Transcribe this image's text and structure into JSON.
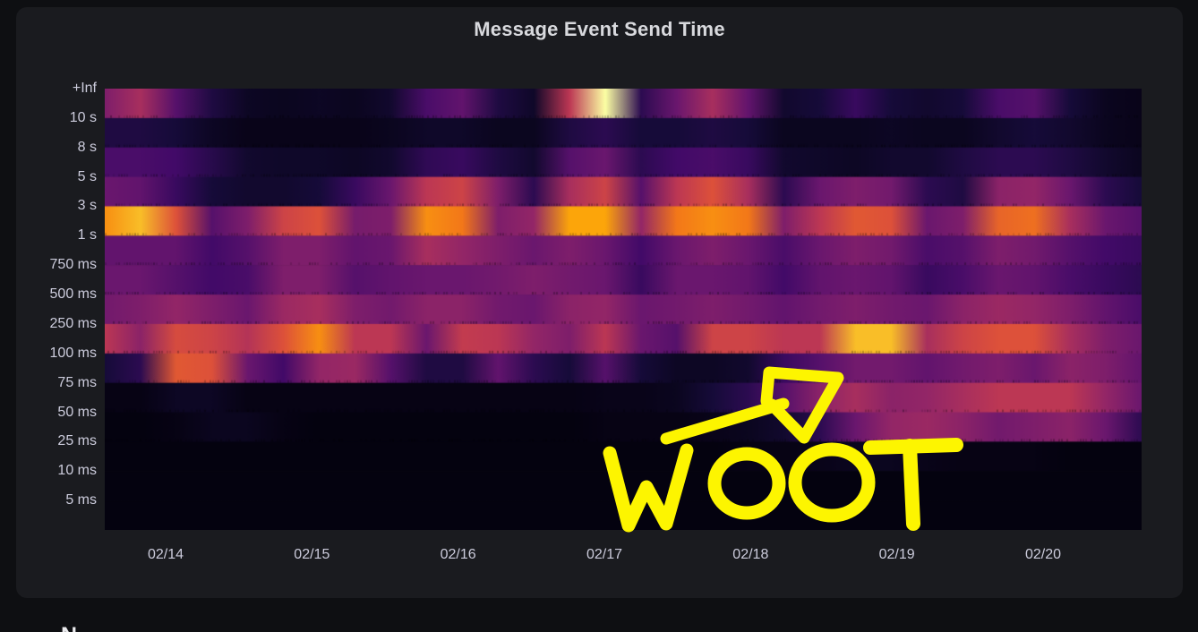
{
  "panel": {
    "title": "Message Event Send Time",
    "background": "#1a1b1f",
    "page_background": "#0e0f12",
    "text_color": "#ccccdc",
    "title_color": "#d8d9dd"
  },
  "annotation": {
    "text": "WOOT",
    "kind": "hand-drawn-marker-with-arrow",
    "color": "#fdf500"
  },
  "footer": {
    "clipped_text": "N"
  },
  "chart_data": {
    "type": "heatmap",
    "title": "Message Event Send Time",
    "xlabel": "",
    "ylabel": "",
    "legend": "none",
    "grid": false,
    "colormap": "inferno",
    "colormap_stops": [
      [
        0.0,
        0,
        0,
        4
      ],
      [
        0.1,
        22,
        11,
        57
      ],
      [
        0.2,
        66,
        10,
        104
      ],
      [
        0.3,
        106,
        23,
        110
      ],
      [
        0.4,
        147,
        38,
        103
      ],
      [
        0.5,
        188,
        55,
        84
      ],
      [
        0.6,
        221,
        81,
        58
      ],
      [
        0.7,
        243,
        120,
        25
      ],
      [
        0.8,
        252,
        165,
        10
      ],
      [
        0.9,
        246,
        215,
        70
      ],
      [
        1.0,
        252,
        255,
        164
      ]
    ],
    "x_tick_labels": [
      "02/14",
      "02/15",
      "02/16",
      "02/17",
      "02/18",
      "02/19",
      "02/20"
    ],
    "y_bucket_labels": [
      "+Inf",
      "10 s",
      "8 s",
      "5 s",
      "3 s",
      "1 s",
      "750 ms",
      "500 ms",
      "250 ms",
      "100 ms",
      "75 ms",
      "50 ms",
      "25 ms",
      "10 ms",
      "5 ms"
    ],
    "intensity_note": "relative event density 0..1 sampled at 30 evenly spaced time columns spanning ~02/13.6 to ~02/20.7",
    "rows": [
      {
        "bucket": "+Inf",
        "values": [
          0.35,
          0.45,
          0.25,
          0.12,
          0.06,
          0.05,
          0.06,
          0.05,
          0.08,
          0.22,
          0.28,
          0.12,
          0.07,
          0.5,
          1.0,
          0.15,
          0.3,
          0.45,
          0.28,
          0.08,
          0.1,
          0.18,
          0.1,
          0.08,
          0.1,
          0.22,
          0.25,
          0.1,
          0.05,
          0.04
        ]
      },
      {
        "bucket": "10 s",
        "values": [
          0.12,
          0.12,
          0.1,
          0.06,
          0.04,
          0.04,
          0.04,
          0.04,
          0.05,
          0.07,
          0.07,
          0.05,
          0.05,
          0.12,
          0.15,
          0.1,
          0.1,
          0.12,
          0.1,
          0.05,
          0.05,
          0.05,
          0.06,
          0.05,
          0.05,
          0.08,
          0.1,
          0.08,
          0.05,
          0.04
        ]
      },
      {
        "bucket": "8 s",
        "values": [
          0.22,
          0.22,
          0.2,
          0.14,
          0.08,
          0.07,
          0.07,
          0.06,
          0.08,
          0.16,
          0.18,
          0.12,
          0.08,
          0.25,
          0.3,
          0.15,
          0.2,
          0.22,
          0.18,
          0.08,
          0.07,
          0.06,
          0.08,
          0.08,
          0.12,
          0.15,
          0.15,
          0.12,
          0.08,
          0.05
        ]
      },
      {
        "bucket": "5 s",
        "values": [
          0.3,
          0.28,
          0.18,
          0.1,
          0.08,
          0.08,
          0.1,
          0.18,
          0.3,
          0.5,
          0.55,
          0.35,
          0.15,
          0.45,
          0.55,
          0.25,
          0.5,
          0.6,
          0.45,
          0.15,
          0.3,
          0.35,
          0.32,
          0.15,
          0.12,
          0.38,
          0.4,
          0.3,
          0.15,
          0.1
        ]
      },
      {
        "bucket": "3 s",
        "values": [
          0.75,
          0.85,
          0.6,
          0.25,
          0.35,
          0.55,
          0.6,
          0.33,
          0.35,
          0.75,
          0.7,
          0.35,
          0.4,
          0.8,
          0.8,
          0.4,
          0.7,
          0.75,
          0.7,
          0.35,
          0.5,
          0.62,
          0.6,
          0.3,
          0.35,
          0.65,
          0.68,
          0.45,
          0.3,
          0.25
        ]
      },
      {
        "bucket": "1 s",
        "values": [
          0.28,
          0.28,
          0.28,
          0.2,
          0.25,
          0.35,
          0.35,
          0.28,
          0.3,
          0.45,
          0.4,
          0.35,
          0.3,
          0.35,
          0.3,
          0.2,
          0.3,
          0.35,
          0.3,
          0.22,
          0.3,
          0.35,
          0.32,
          0.22,
          0.25,
          0.35,
          0.32,
          0.25,
          0.2,
          0.18
        ]
      },
      {
        "bucket": "750 ms",
        "values": [
          0.3,
          0.3,
          0.25,
          0.2,
          0.22,
          0.35,
          0.35,
          0.25,
          0.28,
          0.3,
          0.3,
          0.32,
          0.35,
          0.32,
          0.3,
          0.18,
          0.3,
          0.3,
          0.28,
          0.2,
          0.28,
          0.3,
          0.28,
          0.18,
          0.22,
          0.3,
          0.28,
          0.22,
          0.18,
          0.15
        ]
      },
      {
        "bucket": "500 ms",
        "values": [
          0.32,
          0.35,
          0.4,
          0.35,
          0.3,
          0.42,
          0.45,
          0.35,
          0.32,
          0.38,
          0.38,
          0.32,
          0.3,
          0.38,
          0.4,
          0.3,
          0.32,
          0.35,
          0.32,
          0.28,
          0.32,
          0.35,
          0.32,
          0.3,
          0.38,
          0.42,
          0.4,
          0.35,
          0.28,
          0.22
        ]
      },
      {
        "bucket": "250 ms",
        "values": [
          0.5,
          0.38,
          0.58,
          0.55,
          0.48,
          0.6,
          0.75,
          0.5,
          0.5,
          0.3,
          0.52,
          0.5,
          0.4,
          0.35,
          0.5,
          0.3,
          0.25,
          0.55,
          0.55,
          0.5,
          0.5,
          0.85,
          0.85,
          0.45,
          0.55,
          0.6,
          0.6,
          0.45,
          0.35,
          0.3
        ]
      },
      {
        "bucket": "100 ms",
        "values": [
          0.1,
          0.15,
          0.62,
          0.6,
          0.3,
          0.2,
          0.4,
          0.42,
          0.25,
          0.12,
          0.12,
          0.28,
          0.15,
          0.1,
          0.25,
          0.1,
          0.06,
          0.06,
          0.08,
          0.18,
          0.25,
          0.32,
          0.32,
          0.28,
          0.32,
          0.35,
          0.3,
          0.38,
          0.35,
          0.28
        ]
      },
      {
        "bucket": "75 ms",
        "values": [
          0.03,
          0.03,
          0.06,
          0.06,
          0.03,
          0.03,
          0.03,
          0.03,
          0.03,
          0.03,
          0.03,
          0.03,
          0.03,
          0.03,
          0.04,
          0.04,
          0.05,
          0.1,
          0.15,
          0.25,
          0.38,
          0.45,
          0.38,
          0.4,
          0.45,
          0.5,
          0.5,
          0.5,
          0.4,
          0.3
        ]
      },
      {
        "bucket": "50 ms",
        "values": [
          0.02,
          0.02,
          0.03,
          0.05,
          0.05,
          0.03,
          0.02,
          0.02,
          0.02,
          0.02,
          0.02,
          0.02,
          0.02,
          0.02,
          0.03,
          0.03,
          0.03,
          0.04,
          0.05,
          0.08,
          0.15,
          0.3,
          0.4,
          0.42,
          0.38,
          0.32,
          0.35,
          0.38,
          0.3,
          0.15
        ]
      },
      {
        "bucket": "25 ms",
        "values": [
          0.02,
          0.02,
          0.02,
          0.02,
          0.02,
          0.02,
          0.02,
          0.02,
          0.02,
          0.02,
          0.02,
          0.02,
          0.02,
          0.02,
          0.02,
          0.02,
          0.02,
          0.02,
          0.03,
          0.03,
          0.04,
          0.05,
          0.05,
          0.04,
          0.03,
          0.03,
          0.03,
          0.02,
          0.02,
          0.02
        ]
      },
      {
        "bucket": "10 ms",
        "values": [
          0.02,
          0.02,
          0.02,
          0.02,
          0.02,
          0.02,
          0.02,
          0.02,
          0.02,
          0.02,
          0.02,
          0.02,
          0.02,
          0.02,
          0.02,
          0.02,
          0.02,
          0.02,
          0.02,
          0.02,
          0.02,
          0.02,
          0.02,
          0.02,
          0.02,
          0.02,
          0.02,
          0.02,
          0.02,
          0.02
        ]
      },
      {
        "bucket": "5 ms",
        "values": [
          0.02,
          0.02,
          0.02,
          0.02,
          0.02,
          0.02,
          0.02,
          0.02,
          0.02,
          0.02,
          0.02,
          0.02,
          0.02,
          0.02,
          0.02,
          0.02,
          0.02,
          0.02,
          0.02,
          0.02,
          0.02,
          0.02,
          0.02,
          0.02,
          0.02,
          0.02,
          0.02,
          0.02,
          0.02,
          0.02
        ]
      }
    ]
  }
}
